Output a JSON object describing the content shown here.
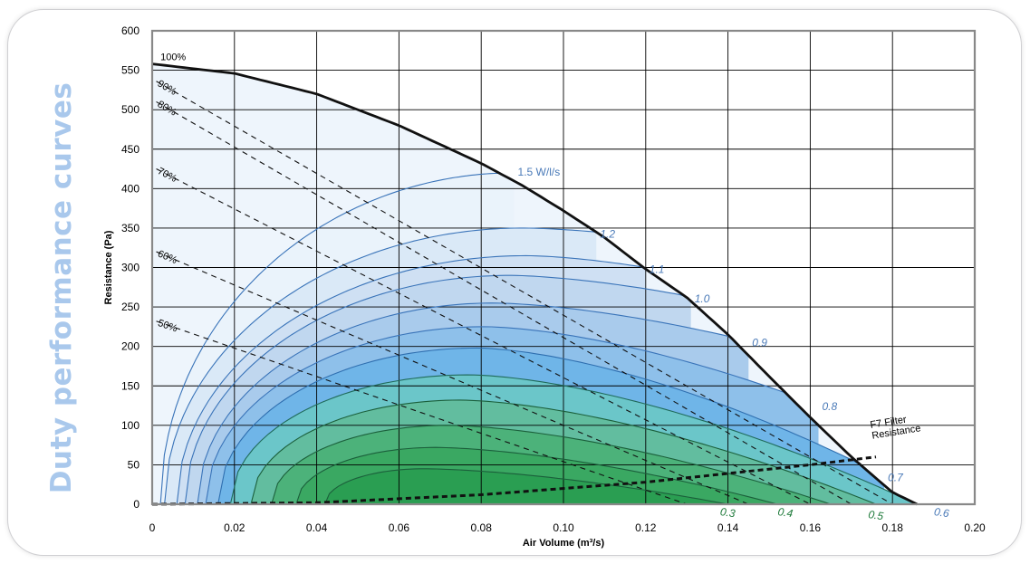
{
  "page": {
    "side_title": "Duty performance curves"
  },
  "colors": {
    "accent": "#a9c8ec",
    "grid": "#000000",
    "fan_curve": "#111111",
    "spec_power_label": "#4a7ab8",
    "sfp_label_green": "#1e7a3a",
    "plot_border": "#888888"
  },
  "chart_data": {
    "type": "line",
    "title": "",
    "xlabel": "Air Volume (m³/s)",
    "ylabel": "Resistance (Pa)",
    "xlim": [
      0,
      0.2
    ],
    "ylim": [
      0,
      600
    ],
    "grid": true,
    "x_ticks": [
      0,
      0.02,
      0.04,
      0.06,
      0.08,
      0.1,
      0.12,
      0.14,
      0.16,
      0.18,
      0.2
    ],
    "x_tick_labels": [
      "0",
      "0.02",
      "0.04",
      "0.06",
      "0.08",
      "0.10",
      "0.12",
      "0.14",
      "0.16",
      "0.18",
      "0.20"
    ],
    "y_ticks": [
      0,
      50,
      100,
      150,
      200,
      250,
      300,
      350,
      400,
      450,
      500,
      550,
      600
    ],
    "y_tick_labels": [
      "0",
      "50",
      "100",
      "150",
      "200",
      "250",
      "300",
      "350",
      "400",
      "450",
      "500",
      "550",
      "600"
    ],
    "fan_curve": {
      "label": "100%",
      "x": [
        0,
        0.02,
        0.04,
        0.06,
        0.08,
        0.09,
        0.1,
        0.11,
        0.12,
        0.13,
        0.14,
        0.15,
        0.16,
        0.17,
        0.18,
        0.186
      ],
      "y": [
        558,
        546,
        520,
        480,
        432,
        404,
        372,
        338,
        298,
        262,
        215,
        162,
        110,
        60,
        15,
        0
      ]
    },
    "efficiency_lines": [
      {
        "label": "90%",
        "x0": 0.001,
        "y0": 536,
        "x1": 0.18,
        "y1": 0
      },
      {
        "label": "80%",
        "x0": 0.001,
        "y0": 510,
        "x1": 0.17,
        "y1": 0
      },
      {
        "label": "70%",
        "x0": 0.001,
        "y0": 425,
        "x1": 0.16,
        "y1": 0
      },
      {
        "label": "60%",
        "x0": 0.001,
        "y0": 320,
        "x1": 0.145,
        "y1": 0
      },
      {
        "label": "50%",
        "x0": 0.001,
        "y0": 232,
        "x1": 0.13,
        "y1": 0
      }
    ],
    "specific_fan_power_curves": [
      {
        "label": "1.5 W/l/s",
        "peak_x": 0.088,
        "peak_y": 420,
        "x_start": 0.002,
        "end_x": 0.088,
        "end_y": 420,
        "fill": "#eaf3fb",
        "line": "#3a74b9"
      },
      {
        "label": "1.2",
        "peak_x": 0.09,
        "peak_y": 350,
        "x_start": 0.003,
        "end_x": 0.108,
        "end_y": 345,
        "fill": "#dae9f7",
        "line": "#3a74b9"
      },
      {
        "label": "1.1",
        "peak_x": 0.091,
        "peak_y": 315,
        "x_start": 0.006,
        "end_x": 0.12,
        "end_y": 300,
        "fill": "#cfe0f3",
        "line": "#3a74b9"
      },
      {
        "label": "1.0",
        "peak_x": 0.087,
        "peak_y": 290,
        "x_start": 0.008,
        "end_x": 0.131,
        "end_y": 263,
        "fill": "#c0d7ef",
        "line": "#3a74b9"
      },
      {
        "label": "0.9",
        "peak_x": 0.083,
        "peak_y": 255,
        "x_start": 0.011,
        "end_x": 0.145,
        "end_y": 207,
        "fill": "#a9cbec",
        "line": "#3a74b9"
      },
      {
        "label": "0.8",
        "peak_x": 0.081,
        "peak_y": 225,
        "x_start": 0.013,
        "end_x": 0.162,
        "end_y": 126,
        "fill": "#8ec0ea",
        "line": "#3a74b9"
      },
      {
        "label": "0.7",
        "peak_x": 0.079,
        "peak_y": 198,
        "x_start": 0.016,
        "end_x": 0.178,
        "end_y": 36,
        "fill": "#6fb5e8",
        "line": "#2f6fb0"
      },
      {
        "label": "",
        "peak_x": 0.077,
        "peak_y": 164,
        "x_start": 0.019,
        "end_x": 0.186,
        "end_y": 0,
        "fill": "#6bc6c9",
        "line": "#1f6a5a"
      },
      {
        "label": "",
        "peak_x": 0.075,
        "peak_y": 132,
        "x_start": 0.024,
        "end_x": 0.176,
        "end_y": 0,
        "fill": "#62bd9f",
        "line": "#1b5f3b"
      },
      {
        "label": "",
        "peak_x": 0.072,
        "peak_y": 100,
        "x_start": 0.029,
        "end_x": 0.165,
        "end_y": 0,
        "fill": "#4cb27a",
        "line": "#1b5f3b"
      },
      {
        "label": "",
        "peak_x": 0.069,
        "peak_y": 72,
        "x_start": 0.035,
        "end_x": 0.152,
        "end_y": 0,
        "fill": "#3aa862",
        "line": "#1b5f3b"
      },
      {
        "label": "",
        "peak_x": 0.066,
        "peak_y": 45,
        "x_start": 0.042,
        "end_x": 0.14,
        "end_y": 0,
        "fill": "#2a9e52",
        "line": "#1b5f3b"
      }
    ],
    "sfp_bottom_labels": [
      {
        "label": "0.3",
        "x": 0.138,
        "y": -12,
        "color": "#1e7a3a"
      },
      {
        "label": "0.4",
        "x": 0.152,
        "y": -12,
        "color": "#1e7a3a"
      },
      {
        "label": "0.5",
        "x": 0.174,
        "y": -15,
        "color": "#1e7a3a"
      },
      {
        "label": "0.6",
        "x": 0.19,
        "y": -12,
        "color": "#4a7ab8"
      }
    ],
    "filter_line": {
      "label_line1": "F7 Filter",
      "label_line2": "Resistance",
      "x": [
        0.0,
        0.04,
        0.08,
        0.12,
        0.16,
        0.176
      ],
      "y": [
        0,
        2,
        12,
        28,
        50,
        60
      ]
    }
  }
}
